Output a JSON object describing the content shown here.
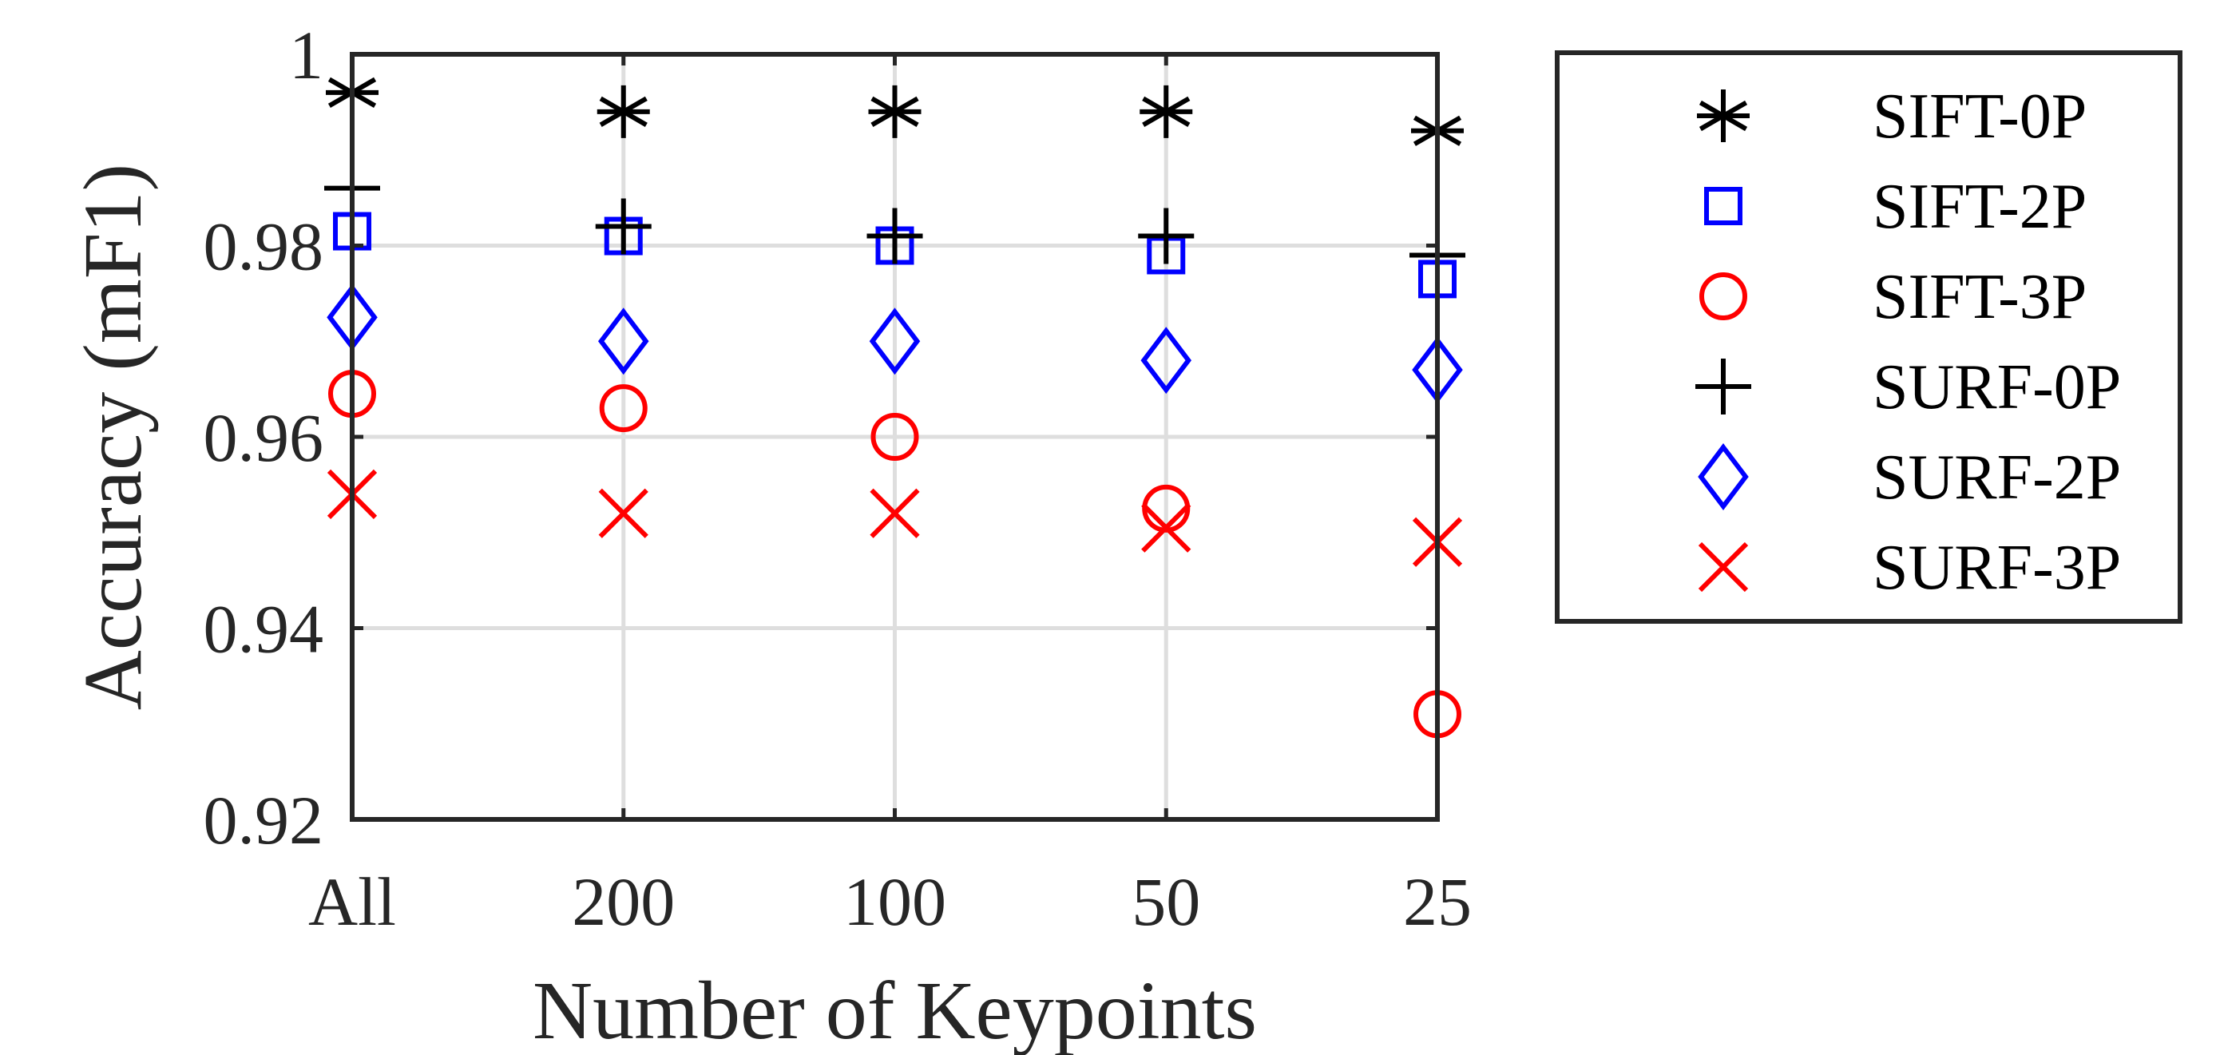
{
  "chart_data": {
    "type": "scatter",
    "title": "",
    "xlabel": "Number of Keypoints",
    "ylabel": "Accuracy (mF1)",
    "categories": [
      "All",
      "200",
      "100",
      "50",
      "25"
    ],
    "ylim": [
      0.92,
      1
    ],
    "yticks": [
      0.92,
      0.94,
      0.96,
      0.98,
      1
    ],
    "ytick_labels": [
      "0.92",
      "0.94",
      "0.96",
      "0.98",
      "1"
    ],
    "grid": true,
    "legend_position": "outside-right",
    "series": [
      {
        "name": "SIFT-0P",
        "marker": "asterisk",
        "color": "#000000",
        "values": [
          0.996,
          0.994,
          0.994,
          0.994,
          0.992
        ]
      },
      {
        "name": "SIFT-2P",
        "marker": "square",
        "color": "#0000ff",
        "values": [
          0.9815,
          0.981,
          0.98,
          0.979,
          0.9765
        ]
      },
      {
        "name": "SIFT-3P",
        "marker": "circle",
        "color": "#ff0000",
        "values": [
          0.9645,
          0.963,
          0.96,
          0.9525,
          0.931
        ]
      },
      {
        "name": "SURF-0P",
        "marker": "plus",
        "color": "#000000",
        "values": [
          0.986,
          0.982,
          0.981,
          0.981,
          0.979
        ]
      },
      {
        "name": "SURF-2P",
        "marker": "diamond",
        "color": "#0000ff",
        "values": [
          0.9725,
          0.97,
          0.97,
          0.968,
          0.967
        ]
      },
      {
        "name": "SURF-3P",
        "marker": "x",
        "color": "#ff0000",
        "values": [
          0.954,
          0.952,
          0.952,
          0.9505,
          0.949
        ]
      }
    ]
  }
}
